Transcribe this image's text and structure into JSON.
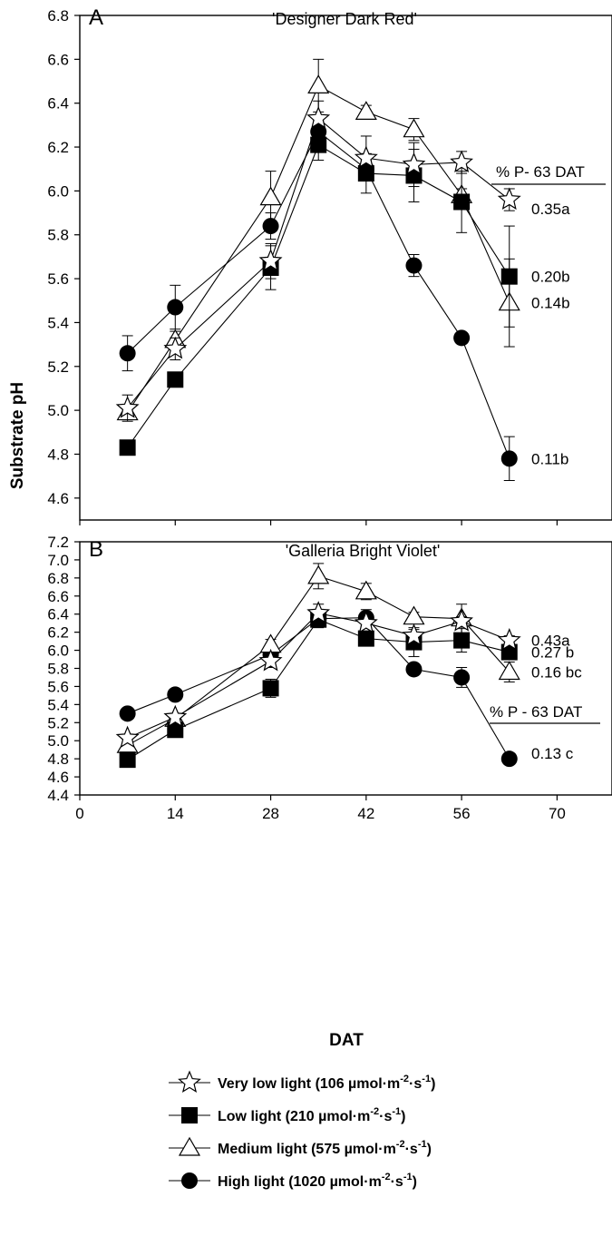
{
  "figure": {
    "y_axis_label": "Substrate pH",
    "x_axis_label": "DAT",
    "legend_title_prefix": "% P",
    "legend": [
      {
        "key": "vll",
        "marker": "open-star",
        "label": "Very low light (106 µmol·m",
        "sup": "-2",
        "mid": "·s",
        "sup2": "-1",
        "tail": ")"
      },
      {
        "key": "ll",
        "marker": "filled-square",
        "label": "Low light (210 µmol·m",
        "sup": "-2",
        "mid": "·s",
        "sup2": "-1",
        "tail": ")"
      },
      {
        "key": "ml",
        "marker": "open-triangle",
        "label": "Medium light (575 µmol·m",
        "sup": "-2",
        "mid": "·s",
        "sup2": "-1",
        "tail": ")"
      },
      {
        "key": "hl",
        "marker": "filled-circle",
        "label": "High light (1020 µmol·m",
        "sup": "-2",
        "mid": "·s",
        "sup2": "-1",
        "tail": ")"
      }
    ]
  },
  "chart_data": [
    {
      "type": "line",
      "panel": "A",
      "title": "'Designer Dark Red'",
      "ylim": [
        4.5,
        6.8
      ],
      "yticks": [
        "4.6",
        "4.8",
        "5.0",
        "5.2",
        "5.4",
        "5.6",
        "5.8",
        "6.0",
        "6.2",
        "6.4",
        "6.6",
        "6.8"
      ],
      "xlim": [
        0,
        78
      ],
      "xticks": [],
      "annotation_header": "% P- 63 DAT",
      "series": [
        {
          "key": "vll",
          "marker": "open-star",
          "points": [
            {
              "x": 7,
              "y": 5.01,
              "err": 0.06
            },
            {
              "x": 14,
              "y": 5.28,
              "err": 0.05
            },
            {
              "x": 28,
              "y": 5.68,
              "err": 0.08
            },
            {
              "x": 35,
              "y": 6.33,
              "err": 0.08
            },
            {
              "x": 42,
              "y": 6.15,
              "err": 0.1
            },
            {
              "x": 49,
              "y": 6.12,
              "err": 0.1
            },
            {
              "x": 56,
              "y": 6.13,
              "err": 0.05
            },
            {
              "x": 63,
              "y": 5.96,
              "err": 0.05
            }
          ],
          "end_label": "0.35a"
        },
        {
          "key": "ll",
          "marker": "filled-square",
          "points": [
            {
              "x": 7,
              "y": 4.83,
              "err": 0.03
            },
            {
              "x": 14,
              "y": 5.14,
              "err": 0.03
            },
            {
              "x": 28,
              "y": 5.65,
              "err": 0.1
            },
            {
              "x": 35,
              "y": 6.21,
              "err": 0.07
            },
            {
              "x": 42,
              "y": 6.08,
              "err": 0.09
            },
            {
              "x": 49,
              "y": 6.07,
              "err": 0.12
            },
            {
              "x": 56,
              "y": 5.95,
              "err": 0.14
            },
            {
              "x": 63,
              "y": 5.61,
              "err": 0.23
            }
          ],
          "end_label": "0.20b"
        },
        {
          "key": "ml",
          "marker": "open-triangle",
          "points": [
            {
              "x": 7,
              "y": 4.99,
              "err": 0.03
            },
            {
              "x": 14,
              "y": 5.32,
              "err": 0.04
            },
            {
              "x": 28,
              "y": 5.97,
              "err": 0.12
            },
            {
              "x": 35,
              "y": 6.48,
              "err": 0.12
            },
            {
              "x": 42,
              "y": 6.36,
              "err": 0.03
            },
            {
              "x": 49,
              "y": 6.28,
              "err": 0.05
            },
            {
              "x": 56,
              "y": 5.98,
              "err": 0.03
            },
            {
              "x": 63,
              "y": 5.49,
              "err": 0.2
            }
          ],
          "end_label": "0.14b"
        },
        {
          "key": "hl",
          "marker": "filled-circle",
          "points": [
            {
              "x": 7,
              "y": 5.26,
              "err": 0.08
            },
            {
              "x": 14,
              "y": 5.47,
              "err": 0.1
            },
            {
              "x": 28,
              "y": 5.84,
              "err": 0.06
            },
            {
              "x": 35,
              "y": 6.27,
              "err": 0.05
            },
            {
              "x": 42,
              "y": 6.1,
              "err": 0.04
            },
            {
              "x": 49,
              "y": 5.66,
              "err": 0.05
            },
            {
              "x": 56,
              "y": 5.33,
              "err": 0.02
            },
            {
              "x": 63,
              "y": 4.78,
              "err": 0.1
            }
          ],
          "end_label": "0.11b"
        }
      ]
    },
    {
      "type": "line",
      "panel": "B",
      "title": "'Galleria Bright Violet'",
      "ylim": [
        4.4,
        7.2
      ],
      "yticks": [
        "4.4",
        "4.6",
        "4.8",
        "5.0",
        "5.2",
        "5.4",
        "5.6",
        "5.8",
        "6.0",
        "6.2",
        "6.4",
        "6.6",
        "6.8",
        "7.0",
        "7.2"
      ],
      "xlim": [
        0,
        78
      ],
      "xticks": [
        "0",
        "14",
        "28",
        "42",
        "56",
        "70"
      ],
      "annotation_header": "% P - 63 DAT",
      "series": [
        {
          "key": "vll",
          "marker": "open-star",
          "points": [
            {
              "x": 7,
              "y": 5.03,
              "err": 0.04
            },
            {
              "x": 14,
              "y": 5.26,
              "err": 0.04
            },
            {
              "x": 28,
              "y": 5.88,
              "err": 0.07
            },
            {
              "x": 35,
              "y": 6.41,
              "err": 0.1
            },
            {
              "x": 42,
              "y": 6.3,
              "err": 0.05
            },
            {
              "x": 49,
              "y": 6.16,
              "err": 0.07
            },
            {
              "x": 56,
              "y": 6.32,
              "err": 0.05
            },
            {
              "x": 63,
              "y": 6.11,
              "err": 0.05
            }
          ],
          "end_label": "0.43a"
        },
        {
          "key": "ll",
          "marker": "filled-square",
          "points": [
            {
              "x": 7,
              "y": 4.79,
              "err": 0.02
            },
            {
              "x": 14,
              "y": 5.12,
              "err": 0.03
            },
            {
              "x": 28,
              "y": 5.58,
              "err": 0.1
            },
            {
              "x": 35,
              "y": 6.34,
              "err": 0.08
            },
            {
              "x": 42,
              "y": 6.13,
              "err": 0.04
            },
            {
              "x": 49,
              "y": 6.09,
              "err": 0.16
            },
            {
              "x": 56,
              "y": 6.11,
              "err": 0.13
            },
            {
              "x": 63,
              "y": 5.98,
              "err": 0.08
            }
          ],
          "end_label": "0.27 b"
        },
        {
          "key": "ml",
          "marker": "open-triangle",
          "points": [
            {
              "x": 7,
              "y": 4.95,
              "err": 0.04
            },
            {
              "x": 14,
              "y": 5.24,
              "err": 0.04
            },
            {
              "x": 28,
              "y": 6.06,
              "err": 0.06
            },
            {
              "x": 35,
              "y": 6.82,
              "err": 0.14
            },
            {
              "x": 42,
              "y": 6.65,
              "err": 0.09
            },
            {
              "x": 49,
              "y": 6.37,
              "err": 0.05
            },
            {
              "x": 56,
              "y": 6.35,
              "err": 0.16
            },
            {
              "x": 63,
              "y": 5.76,
              "err": 0.11
            }
          ],
          "end_label": "0.16 bc"
        },
        {
          "key": "hl",
          "marker": "filled-circle",
          "points": [
            {
              "x": 7,
              "y": 5.3,
              "err": 0.05
            },
            {
              "x": 14,
              "y": 5.51,
              "err": 0.03
            },
            {
              "x": 28,
              "y": 5.95,
              "err": 0.07
            },
            {
              "x": 35,
              "y": 6.35,
              "err": 0.1
            },
            {
              "x": 42,
              "y": 6.36,
              "err": 0.09
            },
            {
              "x": 49,
              "y": 5.79,
              "err": 0.05
            },
            {
              "x": 56,
              "y": 5.7,
              "err": 0.11
            },
            {
              "x": 63,
              "y": 4.8,
              "err": 0.05
            }
          ],
          "end_label": "0.13 c"
        }
      ]
    }
  ]
}
